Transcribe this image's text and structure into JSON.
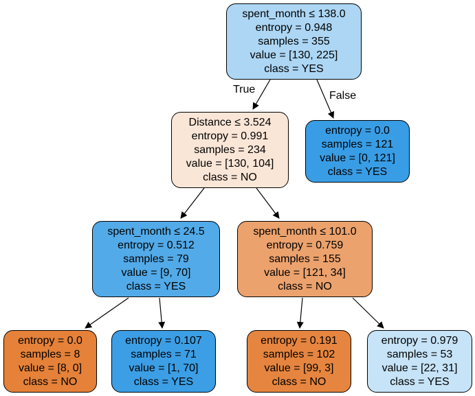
{
  "nodes": [
    {
      "id": "root",
      "lines": [
        "spent_month ≤ 138.0",
        "entropy = 0.948",
        "samples = 355",
        "value = [130, 225]",
        "class = YES"
      ],
      "fill": "#acd6f4"
    },
    {
      "id": "n1",
      "lines": [
        "Distance ≤ 3.524",
        "entropy = 0.991",
        "samples = 234",
        "value = [130, 104]",
        "class = NO"
      ],
      "fill": "#fae6d7"
    },
    {
      "id": "n2",
      "lines": [
        "entropy = 0.0",
        "samples = 121",
        "value = [0, 121]",
        "class = YES"
      ],
      "fill": "#399de5"
    },
    {
      "id": "n3",
      "lines": [
        "spent_month ≤ 24.5",
        "entropy = 0.512",
        "samples = 79",
        "value = [9, 70]",
        "class = YES"
      ],
      "fill": "#52aae8"
    },
    {
      "id": "n4",
      "lines": [
        "spent_month ≤ 101.0",
        "entropy = 0.759",
        "samples = 155",
        "value = [121, 34]",
        "class = NO"
      ],
      "fill": "#eca26d"
    },
    {
      "id": "n5",
      "lines": [
        "entropy = 0.0",
        "samples = 8",
        "value = [8, 0]",
        "class = NO"
      ],
      "fill": "#e58139"
    },
    {
      "id": "n6",
      "lines": [
        "entropy = 0.107",
        "samples = 71",
        "value = [1, 70]",
        "class = YES"
      ],
      "fill": "#3c9ee5"
    },
    {
      "id": "n7",
      "lines": [
        "entropy = 0.191",
        "samples = 102",
        "value = [99, 3]",
        "class = NO"
      ],
      "fill": "#e6853f"
    },
    {
      "id": "n8",
      "lines": [
        "entropy = 0.979",
        "samples = 53",
        "value = [22, 31]",
        "class = YES"
      ],
      "fill": "#c6e3f7"
    }
  ],
  "edge_labels": {
    "true_label": "True",
    "false_label": "False"
  },
  "colors": {
    "edge": "#000000",
    "node_border": "#000000",
    "text": "#000000"
  }
}
